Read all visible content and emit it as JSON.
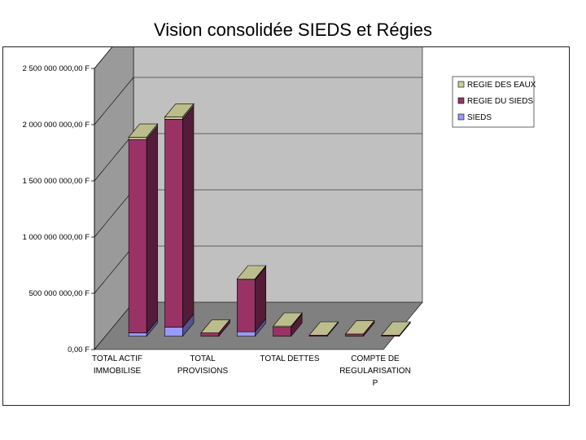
{
  "title": "Vision consolidée SIEDS et Régies",
  "chart_data": {
    "type": "bar",
    "stacked": true,
    "three_d": true,
    "categories": [
      {
        "lines": [
          "TOTAL ACTIF",
          "IMMOBILISE"
        ]
      },
      {
        "lines": [
          "",
          ""
        ]
      },
      {
        "lines": [
          "TOTAL",
          "PROVISIONS"
        ]
      },
      {
        "lines": [
          "",
          ""
        ]
      },
      {
        "lines": [
          "TOTAL DETTES",
          ""
        ]
      },
      {
        "lines": [
          "",
          ""
        ]
      },
      {
        "lines": [
          "COMPTE DE",
          "REGULARISATION",
          "P"
        ]
      },
      {
        "lines": [
          "",
          ""
        ]
      }
    ],
    "series": [
      {
        "name": "SIEDS",
        "color": "#9999ff",
        "values": [
          30000000,
          80000000,
          0,
          40000000,
          0,
          0,
          0,
          0
        ]
      },
      {
        "name": "REGIE DU SIEDS",
        "color": "#993366",
        "values": [
          1720000000,
          1850000000,
          30000000,
          460000000,
          80000000,
          10000000,
          20000000,
          10000000
        ]
      },
      {
        "name": "REGIE DES EAUX",
        "color": "#cccc99",
        "values": [
          20000000,
          20000000,
          0,
          10000000,
          10000000,
          0,
          0,
          0
        ]
      }
    ],
    "legend_order": [
      "REGIE DES EAUX",
      "REGIE DU SIEDS",
      "SIEDS"
    ],
    "legend_position": "top-right",
    "ylim": [
      0,
      2500000000
    ],
    "y_ticks": [
      {
        "value": 0,
        "label": "0,00 F"
      },
      {
        "value": 500000000,
        "label": "500 000 000,00 F"
      },
      {
        "value": 1000000000,
        "label": "1 000 000 000,00 F"
      },
      {
        "value": 1500000000,
        "label": "1 500 000 000,00 F"
      },
      {
        "value": 2000000000,
        "label": "2 000 000 000,00 F"
      },
      {
        "value": 2500000000,
        "label": "2 500 000 000,00 F"
      }
    ],
    "grid": true,
    "colors": {
      "wall": "#c0c0c0",
      "wall_dark": "#9a9a9a",
      "floor": "#808080",
      "grid": "#000000"
    }
  }
}
